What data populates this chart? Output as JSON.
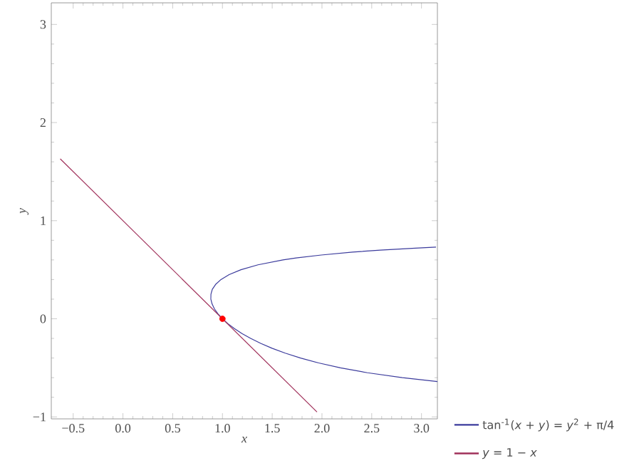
{
  "chart_data": {
    "type": "line",
    "xlabel": "x",
    "ylabel": "y",
    "xlim": [
      -0.72,
      3.16
    ],
    "ylim": [
      -1.02,
      3.22
    ],
    "xticks": [
      {
        "value": -0.5,
        "label": "−0.5"
      },
      {
        "value": 0,
        "label": "0.0"
      },
      {
        "value": 0.5,
        "label": "0.5"
      },
      {
        "value": 1,
        "label": "1.0"
      },
      {
        "value": 1.5,
        "label": "1.5"
      },
      {
        "value": 2,
        "label": "2.0"
      },
      {
        "value": 2.5,
        "label": "2.5"
      },
      {
        "value": 3,
        "label": "3.0"
      }
    ],
    "yticks": [
      {
        "value": -1,
        "label": "−1"
      },
      0,
      1,
      2,
      3
    ],
    "legend": "bottom right",
    "series": [
      {
        "name": "tan$^{-1}$(*x* + *y*) = *y*$^{2}$ + π/4",
        "color": "#3b3b9c",
        "x": [
          3.16,
          2.807,
          2.457,
          2.186,
          1.967,
          1.785,
          1.631,
          1.498,
          1.384,
          1.283,
          1.196,
          1.12,
          1.055,
          1.0,
          0.955,
          0.92,
          0.896,
          0.883,
          0.884,
          0.898,
          0.931,
          0.985,
          1.067,
          1.186,
          1.357,
          1.607,
          1.739,
          1.993,
          2.308,
          2.586,
          2.937,
          3.146
        ],
        "values": [
          -0.64,
          -0.6,
          -0.55,
          -0.5,
          -0.45,
          -0.4,
          -0.35,
          -0.3,
          -0.25,
          -0.2,
          -0.15,
          -0.1,
          -0.05,
          0,
          0.05,
          0.1,
          0.15,
          0.2,
          0.25,
          0.3,
          0.35,
          0.4,
          0.45,
          0.5,
          0.55,
          0.6,
          0.62,
          0.65,
          0.68,
          0.7,
          0.72,
          0.73
        ]
      },
      {
        "name": "*y* = 1 − *x*",
        "color": "#a0305a",
        "x": [
          -0.63,
          1.95
        ],
        "values": [
          1.63,
          -0.95
        ]
      },
      {
        "type": "scatter",
        "color": "#ff0000",
        "x": [
          1
        ],
        "values": [
          0
        ]
      }
    ]
  }
}
